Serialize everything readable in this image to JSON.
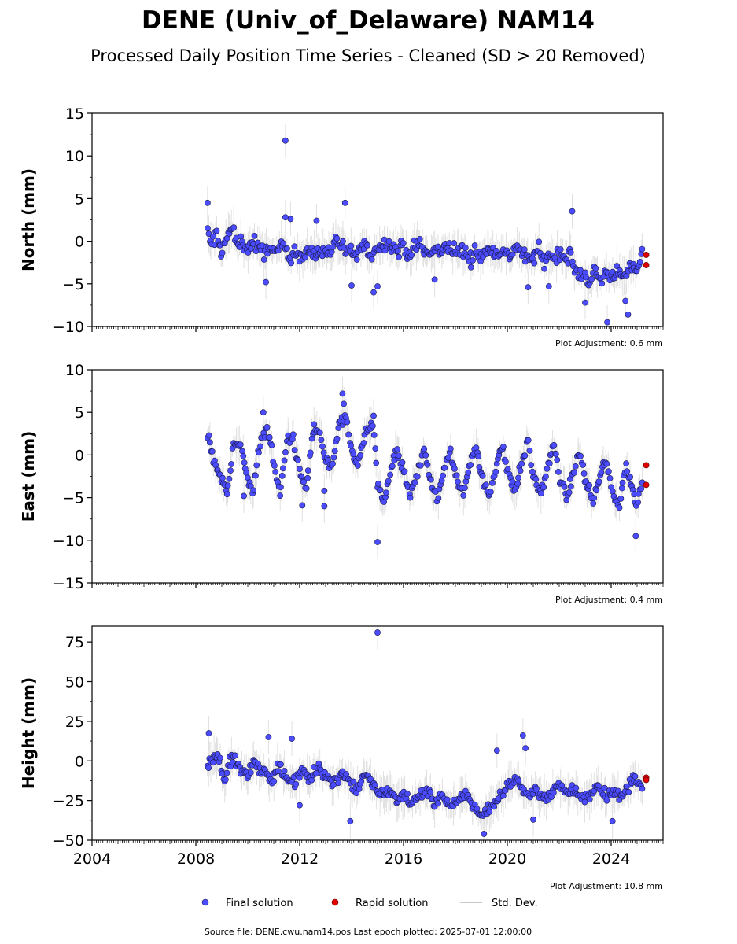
{
  "figure": {
    "title": "DENE (Univ_of_Delaware) NAM14",
    "subtitle": "Processed Daily Position Time Series - Cleaned (SD > 20 Removed)",
    "footer": "Source file: DENE.cwu.nam14.pos  Last epoch plotted: 2025-07-01 12:00:00",
    "colors": {
      "final": "#4b4bff",
      "rapid": "#e00000",
      "std": "#c8c8c8",
      "edge": "#1a1a4d"
    }
  },
  "legend": {
    "items": [
      {
        "label": "Final solution",
        "kind": "final"
      },
      {
        "label": "Rapid solution",
        "kind": "rapid"
      },
      {
        "label": "Std. Dev.",
        "kind": "std"
      }
    ]
  },
  "chart_data": [
    {
      "type": "scatter",
      "name": "north",
      "ylabel": "North (mm)",
      "ylim": [
        -10,
        15
      ],
      "yticks": [
        -10,
        -5,
        0,
        5,
        10,
        15
      ],
      "xlim": [
        2004,
        2026
      ],
      "xticks": [
        2004,
        2008,
        2012,
        2016,
        2020,
        2024
      ],
      "show_xticklabels": false,
      "adjustment": "Plot Adjustment: 0.6 mm",
      "final_series": [
        [
          2008.45,
          1.2
        ],
        [
          2008.6,
          -0.5
        ],
        [
          2008.8,
          0.8
        ],
        [
          2009.0,
          -1.5
        ],
        [
          2009.2,
          0.5
        ],
        [
          2009.4,
          1.5
        ],
        [
          2009.6,
          -0.5
        ],
        [
          2009.8,
          0.2
        ],
        [
          2010.0,
          -1.0
        ],
        [
          2010.2,
          0.0
        ],
        [
          2010.4,
          -0.8
        ],
        [
          2010.6,
          -1.5
        ],
        [
          2010.8,
          -0.3
        ],
        [
          2011.0,
          -1.8
        ],
        [
          2011.2,
          -1.0
        ],
        [
          2011.4,
          -0.5
        ],
        [
          2011.6,
          -1.8
        ],
        [
          2011.8,
          -1.2
        ],
        [
          2012.0,
          -1.5
        ],
        [
          2012.2,
          -2.0
        ],
        [
          2012.4,
          -1.0
        ],
        [
          2012.6,
          -1.8
        ],
        [
          2012.8,
          -0.8
        ],
        [
          2013.0,
          -1.5
        ],
        [
          2013.2,
          -1.2
        ],
        [
          2013.4,
          0.5
        ],
        [
          2013.6,
          -0.5
        ],
        [
          2013.8,
          -1.5
        ],
        [
          2014.0,
          -1.0
        ],
        [
          2014.2,
          -1.8
        ],
        [
          2014.4,
          -0.5
        ],
        [
          2014.6,
          -1.2
        ],
        [
          2014.8,
          -1.5
        ],
        [
          2015.0,
          -0.5
        ],
        [
          2015.2,
          -0.8
        ],
        [
          2015.4,
          0.2
        ],
        [
          2015.6,
          -0.5
        ],
        [
          2015.8,
          -1.2
        ],
        [
          2016.0,
          -0.6
        ],
        [
          2016.2,
          -1.5
        ],
        [
          2016.4,
          -0.8
        ],
        [
          2016.6,
          -0.2
        ],
        [
          2016.8,
          -1.2
        ],
        [
          2017.0,
          -1.8
        ],
        [
          2017.2,
          -0.8
        ],
        [
          2017.4,
          -1.5
        ],
        [
          2017.6,
          -0.5
        ],
        [
          2017.8,
          -1.0
        ],
        [
          2018.0,
          -1.5
        ],
        [
          2018.2,
          -0.8
        ],
        [
          2018.4,
          -1.6
        ],
        [
          2018.6,
          -2.0
        ],
        [
          2018.8,
          -1.0
        ],
        [
          2019.0,
          -1.8
        ],
        [
          2019.2,
          -1.2
        ],
        [
          2019.4,
          -0.8
        ],
        [
          2019.6,
          -1.5
        ],
        [
          2019.8,
          -1.0
        ],
        [
          2020.0,
          -1.8
        ],
        [
          2020.2,
          -1.2
        ],
        [
          2020.4,
          -0.6
        ],
        [
          2020.6,
          -1.5
        ],
        [
          2020.8,
          -2.2
        ],
        [
          2021.0,
          -1.8
        ],
        [
          2021.2,
          -1.0
        ],
        [
          2021.4,
          -2.5
        ],
        [
          2021.6,
          -1.5
        ],
        [
          2021.8,
          -2.0
        ],
        [
          2022.0,
          -1.2
        ],
        [
          2022.2,
          -2.0
        ],
        [
          2022.4,
          -1.5
        ],
        [
          2022.6,
          -3.5
        ],
        [
          2022.8,
          -4.2
        ],
        [
          2023.0,
          -3.8
        ],
        [
          2023.2,
          -4.5
        ],
        [
          2023.4,
          -3.5
        ],
        [
          2023.6,
          -4.8
        ],
        [
          2023.8,
          -3.8
        ],
        [
          2024.0,
          -4.2
        ],
        [
          2024.2,
          -3.2
        ],
        [
          2024.4,
          -4.6
        ],
        [
          2024.6,
          -3.6
        ],
        [
          2024.8,
          -2.8
        ],
        [
          2024.95,
          -3.8
        ],
        [
          2025.2,
          -1.0
        ]
      ],
      "outliers": [
        [
          2008.45,
          4.5
        ],
        [
          2011.45,
          11.8
        ],
        [
          2011.45,
          2.8
        ],
        [
          2011.65,
          2.6
        ],
        [
          2012.65,
          2.4
        ],
        [
          2013.75,
          4.5
        ],
        [
          2014.0,
          -5.2
        ],
        [
          2014.85,
          -6.0
        ],
        [
          2015.0,
          -5.3
        ],
        [
          2017.2,
          -4.5
        ],
        [
          2020.8,
          -5.4
        ],
        [
          2021.6,
          -5.3
        ],
        [
          2022.5,
          3.5
        ],
        [
          2023.0,
          -7.2
        ],
        [
          2023.85,
          -9.5
        ],
        [
          2024.65,
          -8.6
        ],
        [
          2024.55,
          -7.0
        ],
        [
          2010.7,
          -4.8
        ]
      ],
      "spread": 1.3,
      "rapid": [
        [
          2025.35,
          -1.6
        ],
        [
          2025.35,
          -2.8
        ]
      ]
    },
    {
      "type": "scatter",
      "name": "east",
      "ylabel": "East (mm)",
      "ylim": [
        -15,
        10
      ],
      "yticks": [
        -15,
        -10,
        -5,
        0,
        5,
        10
      ],
      "xlim": [
        2004,
        2026
      ],
      "xticks": [
        2004,
        2008,
        2012,
        2016,
        2020,
        2024
      ],
      "show_xticklabels": false,
      "adjustment": "Plot Adjustment: 0.4 mm",
      "final_series": [
        [
          2008.45,
          2.5
        ],
        [
          2008.7,
          -0.5
        ],
        [
          2009.0,
          -3.0
        ],
        [
          2009.2,
          -4.5
        ],
        [
          2009.45,
          1.5
        ],
        [
          2009.7,
          1.0
        ],
        [
          2009.95,
          -2.0
        ],
        [
          2010.2,
          -4.5
        ],
        [
          2010.45,
          1.0
        ],
        [
          2010.75,
          3.5
        ],
        [
          2011.0,
          -1.0
        ],
        [
          2011.25,
          -4.5
        ],
        [
          2011.5,
          1.8
        ],
        [
          2011.75,
          1.8
        ],
        [
          2012.0,
          -2.0
        ],
        [
          2012.25,
          -4.0
        ],
        [
          2012.5,
          2.5
        ],
        [
          2012.75,
          3.0
        ],
        [
          2013.0,
          -0.5
        ],
        [
          2013.25,
          -2.0
        ],
        [
          2013.5,
          3.5
        ],
        [
          2013.75,
          4.5
        ],
        [
          2014.0,
          0.5
        ],
        [
          2014.25,
          -1.5
        ],
        [
          2014.55,
          3.0
        ],
        [
          2014.85,
          3.5
        ],
        [
          2015.0,
          -3.5
        ],
        [
          2015.25,
          -5.5
        ],
        [
          2015.5,
          -2.0
        ],
        [
          2015.75,
          0.5
        ],
        [
          2016.0,
          -2.0
        ],
        [
          2016.25,
          -5.0
        ],
        [
          2016.55,
          -2.0
        ],
        [
          2016.8,
          1.0
        ],
        [
          2017.0,
          -2.5
        ],
        [
          2017.3,
          -5.5
        ],
        [
          2017.55,
          -1.5
        ],
        [
          2017.8,
          0.5
        ],
        [
          2018.0,
          -2.5
        ],
        [
          2018.3,
          -4.5
        ],
        [
          2018.55,
          -1.0
        ],
        [
          2018.8,
          1.5
        ],
        [
          2019.0,
          -2.5
        ],
        [
          2019.3,
          -5.0
        ],
        [
          2019.55,
          -1.5
        ],
        [
          2019.8,
          1.5
        ],
        [
          2020.0,
          -2.0
        ],
        [
          2020.3,
          -4.0
        ],
        [
          2020.55,
          -1.0
        ],
        [
          2020.8,
          1.5
        ],
        [
          2021.0,
          -2.5
        ],
        [
          2021.3,
          -4.5
        ],
        [
          2021.55,
          -1.5
        ],
        [
          2021.8,
          1.0
        ],
        [
          2022.0,
          -2.5
        ],
        [
          2022.3,
          -5.0
        ],
        [
          2022.55,
          -2.0
        ],
        [
          2022.8,
          0.5
        ],
        [
          2023.0,
          -3.0
        ],
        [
          2023.3,
          -5.5
        ],
        [
          2023.55,
          -2.5
        ],
        [
          2023.8,
          -0.5
        ],
        [
          2024.0,
          -4.0
        ],
        [
          2024.3,
          -6.0
        ],
        [
          2024.55,
          -1.5
        ],
        [
          2024.75,
          -3.0
        ],
        [
          2024.95,
          -6.0
        ],
        [
          2025.2,
          -3.5
        ]
      ],
      "outliers": [
        [
          2013.65,
          7.2
        ],
        [
          2013.7,
          6.0
        ],
        [
          2015.0,
          -10.2
        ],
        [
          2012.1,
          -5.9
        ],
        [
          2012.95,
          -6.0
        ],
        [
          2024.95,
          -9.5
        ],
        [
          2014.85,
          4.6
        ],
        [
          2010.6,
          5.0
        ],
        [
          2012.55,
          3.6
        ],
        [
          2009.85,
          -4.8
        ],
        [
          2012.95,
          -4.2
        ]
      ],
      "spread": 0.9,
      "rapid": [
        [
          2025.35,
          -1.2
        ],
        [
          2025.35,
          -3.5
        ]
      ]
    },
    {
      "type": "scatter",
      "name": "height",
      "ylabel": "Height (mm)",
      "ylim": [
        -50,
        85
      ],
      "yticks": [
        -50,
        -25,
        0,
        25,
        50,
        75
      ],
      "xlim": [
        2004,
        2026
      ],
      "xticks": [
        2004,
        2008,
        2012,
        2016,
        2020,
        2024
      ],
      "xticklabels": [
        "2004",
        "2008",
        "2012",
        "2016",
        "2020",
        "2024"
      ],
      "show_xticklabels": true,
      "adjustment": "Plot Adjustment: 10.8 mm",
      "final_series": [
        [
          2008.45,
          -2.0
        ],
        [
          2008.8,
          5.0
        ],
        [
          2009.1,
          -10.0
        ],
        [
          2009.4,
          2.0
        ],
        [
          2009.7,
          -5.0
        ],
        [
          2010.0,
          -10.0
        ],
        [
          2010.3,
          0.0
        ],
        [
          2010.6,
          -8.0
        ],
        [
          2010.9,
          -12.0
        ],
        [
          2011.2,
          -2.0
        ],
        [
          2011.5,
          -10.0
        ],
        [
          2011.8,
          -15.0
        ],
        [
          2012.1,
          -5.0
        ],
        [
          2012.4,
          -12.0
        ],
        [
          2012.7,
          -3.0
        ],
        [
          2013.0,
          -10.0
        ],
        [
          2013.3,
          -15.0
        ],
        [
          2013.6,
          -6.0
        ],
        [
          2013.9,
          -12.0
        ],
        [
          2014.2,
          -18.0
        ],
        [
          2014.5,
          -8.0
        ],
        [
          2014.8,
          -15.0
        ],
        [
          2015.1,
          -22.0
        ],
        [
          2015.4,
          -18.0
        ],
        [
          2015.7,
          -25.0
        ],
        [
          2016.0,
          -20.0
        ],
        [
          2016.3,
          -28.0
        ],
        [
          2016.6,
          -22.0
        ],
        [
          2016.9,
          -18.0
        ],
        [
          2017.2,
          -26.0
        ],
        [
          2017.5,
          -22.0
        ],
        [
          2017.8,
          -30.0
        ],
        [
          2018.1,
          -25.0
        ],
        [
          2018.4,
          -20.0
        ],
        [
          2018.7,
          -28.0
        ],
        [
          2019.0,
          -35.0
        ],
        [
          2019.3,
          -30.0
        ],
        [
          2019.6,
          -25.0
        ],
        [
          2019.9,
          -18.0
        ],
        [
          2020.2,
          -12.0
        ],
        [
          2020.5,
          -15.0
        ],
        [
          2020.8,
          -22.0
        ],
        [
          2021.1,
          -18.0
        ],
        [
          2021.4,
          -25.0
        ],
        [
          2021.7,
          -20.0
        ],
        [
          2022.0,
          -15.0
        ],
        [
          2022.3,
          -22.0
        ],
        [
          2022.6,
          -18.0
        ],
        [
          2022.9,
          -25.0
        ],
        [
          2023.2,
          -20.0
        ],
        [
          2023.5,
          -15.0
        ],
        [
          2023.8,
          -22.0
        ],
        [
          2024.1,
          -18.0
        ],
        [
          2024.4,
          -25.0
        ],
        [
          2024.7,
          -15.0
        ],
        [
          2024.95,
          -10.0
        ],
        [
          2025.2,
          -18.0
        ]
      ],
      "outliers": [
        [
          2015.0,
          81.0
        ],
        [
          2020.6,
          16.0
        ],
        [
          2019.6,
          6.5
        ],
        [
          2020.7,
          8.0
        ],
        [
          2008.5,
          17.5
        ],
        [
          2010.8,
          15.0
        ],
        [
          2011.7,
          14.0
        ],
        [
          2012.0,
          -28.0
        ],
        [
          2013.95,
          -38.0
        ],
        [
          2019.1,
          -46.0
        ],
        [
          2021.0,
          -37.0
        ],
        [
          2024.05,
          -38.0
        ]
      ],
      "spread": 5.5,
      "rapid": [
        [
          2025.35,
          -10.5
        ],
        [
          2025.35,
          -12.0
        ]
      ]
    }
  ]
}
